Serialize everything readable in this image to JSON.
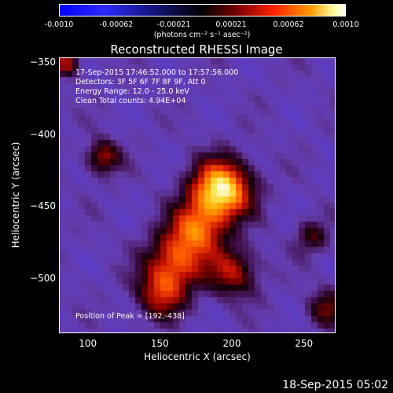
{
  "chart_data": {
    "type": "heatmap",
    "title": "Reconstructed RHESSI Image",
    "xlabel": "Heliocentric X (arcsec)",
    "ylabel": "Heliocentric Y (arcsec)",
    "xlim": [
      80,
      272
    ],
    "ylim": [
      -538,
      -346
    ],
    "xticks": [
      "100",
      "150",
      "200",
      "250"
    ],
    "yticks": [
      "-350",
      "-400",
      "-450",
      "-500"
    ],
    "colorbar": {
      "range": [
        -0.001,
        0.001
      ],
      "ticks": [
        "-0.0010",
        "-0.00062",
        "-0.00021",
        "0.00021",
        "0.00062",
        "0.0010"
      ],
      "units": "(photons cm⁻² s⁻¹ asec⁻²)"
    },
    "annotations": {
      "time": "17-Sep-2015 17:46:52.000 to 17:57:56.000",
      "detectors": "Detectors: 3F 5F 6F 7F 8F 9F, Att 0",
      "energy": "Energy Range: 12.0 - 25.0 keV",
      "clean": "Clean    Total counts: 4.94E+04",
      "peak": "Position of Peak = [192,-438]"
    },
    "peak_position": [
      192,
      -438
    ],
    "sources": [
      {
        "x": 192,
        "y": -438,
        "sigma": 14,
        "amplitude": 1.0
      },
      {
        "x": 175,
        "y": -465,
        "sigma": 13,
        "amplitude": 0.6
      },
      {
        "x": 160,
        "y": -488,
        "sigma": 14,
        "amplitude": 0.55
      },
      {
        "x": 150,
        "y": -510,
        "sigma": 12,
        "amplitude": 0.45
      },
      {
        "x": 200,
        "y": -495,
        "sigma": 12,
        "amplitude": 0.45
      },
      {
        "x": 110,
        "y": -415,
        "sigma": 8,
        "amplitude": 0.45
      },
      {
        "x": 85,
        "y": -350,
        "sigma": 6,
        "amplitude": 0.45
      },
      {
        "x": 265,
        "y": -520,
        "sigma": 9,
        "amplitude": 0.35
      },
      {
        "x": 255,
        "y": -470,
        "sigma": 8,
        "amplitude": 0.3
      }
    ]
  },
  "footer": {
    "timestamp": "18-Sep-2015 05:02"
  }
}
